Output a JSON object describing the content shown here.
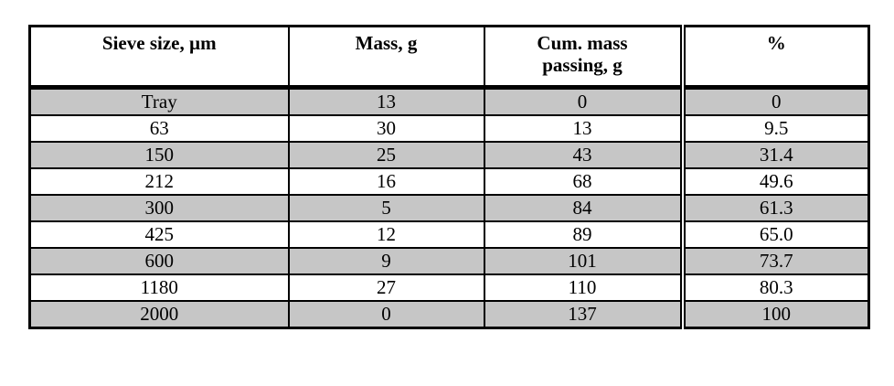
{
  "table": {
    "name": "sieve-analysis-table",
    "columns": [
      "Sieve size, µm",
      "Mass, g",
      "Cum. mass passing, g",
      "%"
    ],
    "rows": [
      [
        "Tray",
        "13",
        "0",
        "0"
      ],
      [
        "63",
        "30",
        "13",
        "9.5"
      ],
      [
        "150",
        "25",
        "43",
        "31.4"
      ],
      [
        "212",
        "16",
        "68",
        "49.6"
      ],
      [
        "300",
        "5",
        "84",
        "61.3"
      ],
      [
        "425",
        "12",
        "89",
        "65.0"
      ],
      [
        "600",
        "9",
        "101",
        "73.7"
      ],
      [
        "1180",
        "27",
        "110",
        "80.3"
      ],
      [
        "2000",
        "0",
        "137",
        "100"
      ]
    ],
    "colors": {
      "row_shaded": "#c6c6c6",
      "row_plain": "#ffffff",
      "border": "#000000",
      "header_background": "#ffffff"
    }
  }
}
